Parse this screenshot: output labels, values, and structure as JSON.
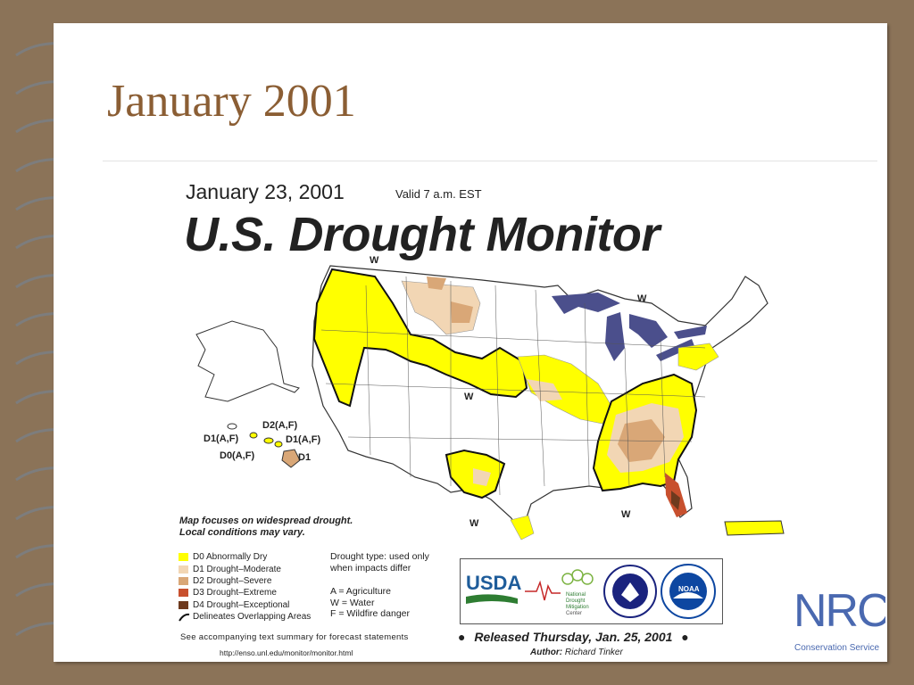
{
  "slide": {
    "title": "January 2001"
  },
  "monitor": {
    "date": "January 23, 2001",
    "valid": "Valid 7 a.m. EST",
    "title": "U.S. Drought Monitor"
  },
  "map": {
    "labels": {
      "w_northwest": "W",
      "w_greatlakes": "W",
      "w_central": "W",
      "w_texas": "W",
      "w_southeast": "W",
      "hawaii_d2": "D2(A,F)",
      "hawaii_d1a": "D1(A,F)",
      "hawaii_d1b": "D1(A,F)",
      "hawaii_d0": "D0(A,F)",
      "hawaii_d1c": "D1"
    }
  },
  "note": {
    "line1": "Map focuses on widespread drought.",
    "line2": "Local conditions may vary."
  },
  "legend": [
    {
      "label": "D0 Abnormally Dry",
      "color": "#FFFF00"
    },
    {
      "label": "D1 Drought–Moderate",
      "color": "#F2D6B4"
    },
    {
      "label": "D2 Drought–Severe",
      "color": "#D9A777"
    },
    {
      "label": "D3 Drought–Extreme",
      "color": "#C8502E"
    },
    {
      "label": "D4 Drought–Exceptional",
      "color": "#6E3A1E"
    }
  ],
  "legend_line": "Delineates Overlapping Areas",
  "drought_types": {
    "line1": "Drought type: used only",
    "line2": "when impacts differ",
    "a": "A = Agriculture",
    "w": "W = Water",
    "f": "F = Wildfire danger"
  },
  "logos": {
    "usda": "USDA",
    "ndmc_line1": "National",
    "ndmc_line2": "Drought",
    "ndmc_line3": "Mitigation",
    "ndmc_line4": "Center",
    "noaa": "NOAA",
    "nrcs": "NRCS",
    "nrcs_sub": "Conservation Service"
  },
  "footer": {
    "see": "See accompanying text summary for forecast statements",
    "url": "http://enso.unl.edu/monitor/monitor.html",
    "released": "Released Thursday, Jan. 25, 2001",
    "author_label": "Author:",
    "author_name": "Richard Tinker"
  }
}
